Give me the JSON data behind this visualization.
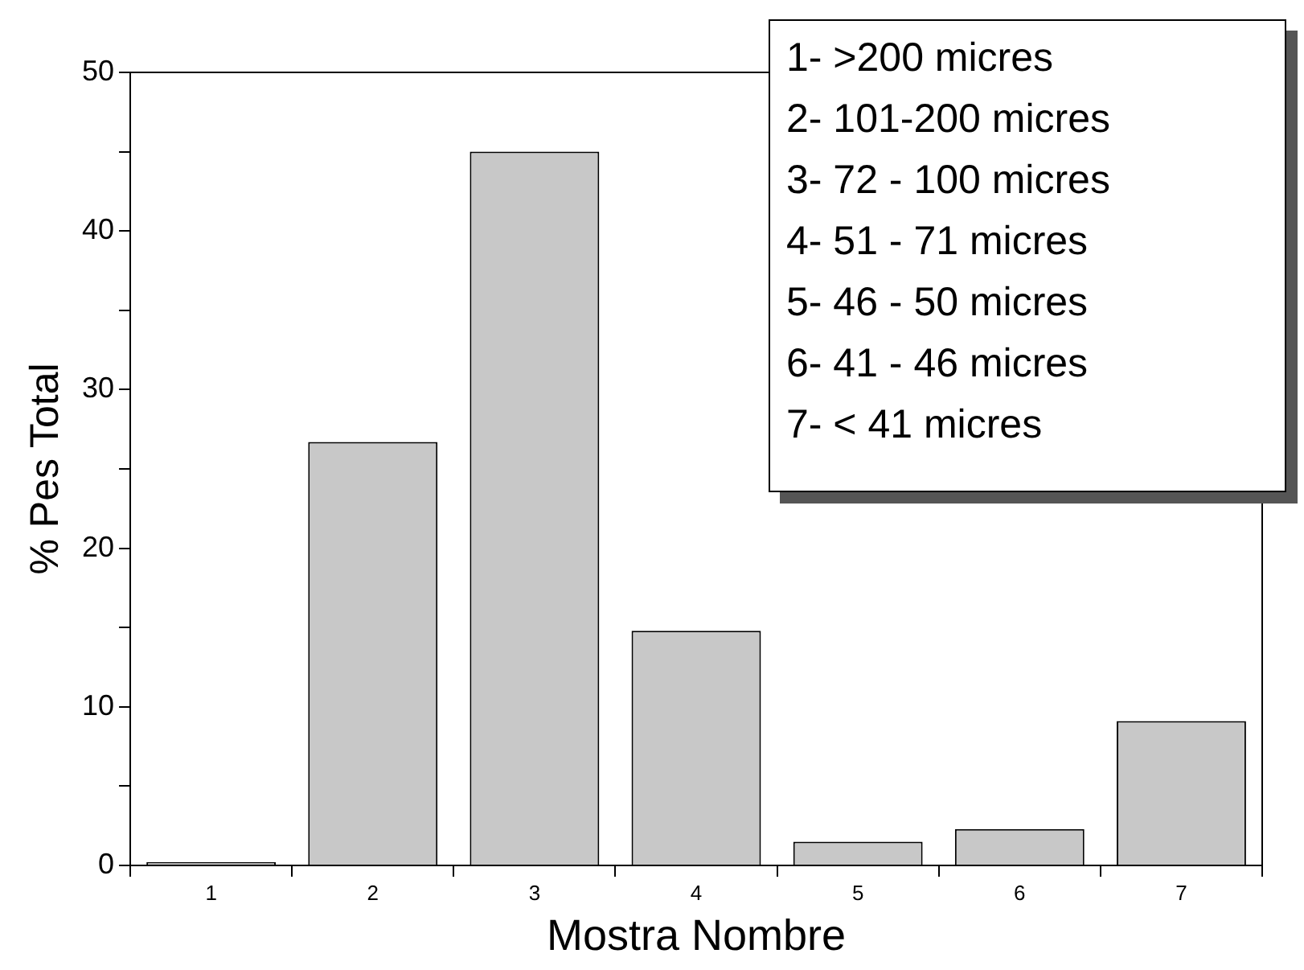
{
  "chart_data": {
    "type": "bar",
    "xlabel": "Mostra Nombre",
    "ylabel": "% Pes Total",
    "categories": [
      "1",
      "2",
      "3",
      "4",
      "5",
      "6",
      "7"
    ],
    "values": [
      0.2,
      26.7,
      45.0,
      14.8,
      1.5,
      2.3,
      9.1
    ],
    "color": "#c8c8c8",
    "ylim": [
      0,
      50
    ],
    "yticks": [
      0,
      {
        "value": 5,
        "label": null
      },
      10,
      {
        "value": 15,
        "label": null
      },
      20,
      {
        "value": 25,
        "label": null
      },
      30,
      {
        "value": 35,
        "label": null
      },
      40,
      {
        "value": 45,
        "label": null
      },
      50
    ],
    "annotations": [
      "1- >200 micres",
      "2- 101-200 micres",
      "3- 72 - 100 micres",
      "4- 51 - 71 micres",
      "5- 46 - 50 micres",
      "6- 41 - 46 micres",
      "7- < 41 micres"
    ]
  }
}
